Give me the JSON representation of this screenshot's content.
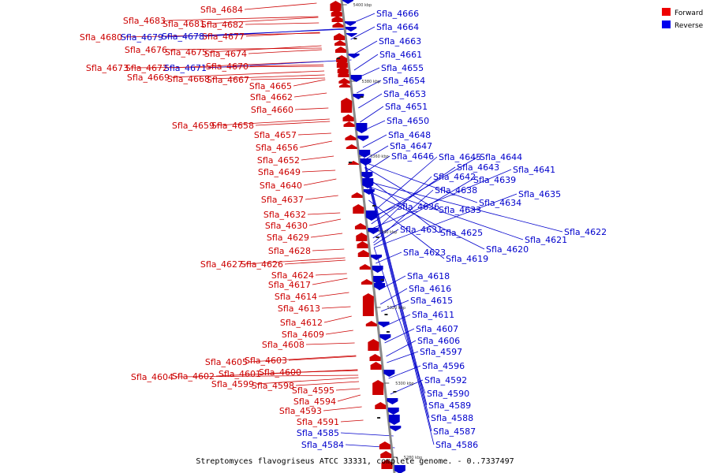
{
  "caption": "Streptomyces flavogriseus ATCC 33331, complete genome. - 0..7337497",
  "legend": {
    "forward": {
      "label": "Forward",
      "color": "#ee0000"
    },
    "reverse": {
      "label": "Reverse",
      "color": "#0000ee"
    }
  },
  "ticks": [
    "5400 kbp",
    "5380 kbp",
    "5360 kbp",
    "5340 kbp",
    "5320 kbp",
    "5300 kbp",
    "5280 kbp"
  ],
  "forward_labels": [
    "Sfla_4684",
    "Sfla_4683",
    "Sfla_4682",
    "Sfla_4681",
    "Sfla_4680",
    "Sfla_4679",
    "Sfla_4678",
    "Sfla_4677",
    "Sfla_4676",
    "Sfla_4675",
    "Sfla_4674",
    "Sfla_4673",
    "Sfla_4672",
    "Sfla_4671",
    "Sfla_4670",
    "Sfla_4669",
    "Sfla_4668",
    "Sfla_4667",
    "Sfla_4665",
    "Sfla_4662",
    "Sfla_4660",
    "Sfla_4659",
    "Sfla_4658",
    "Sfla_4657",
    "Sfla_4656",
    "Sfla_4652",
    "Sfla_4649",
    "Sfla_4640",
    "Sfla_4637",
    "Sfla_4632",
    "Sfla_4630",
    "Sfla_4629",
    "Sfla_4628",
    "Sfla_4627",
    "Sfla_4626",
    "Sfla_4624",
    "Sfla_4617",
    "Sfla_4614",
    "Sfla_4613",
    "Sfla_4612",
    "Sfla_4609",
    "Sfla_4608",
    "Sfla_4605",
    "Sfla_4603",
    "Sfla_4604",
    "Sfla_4602",
    "Sfla_4601",
    "Sfla_4600",
    "Sfla_4599",
    "Sfla_4598",
    "Sfla_4595",
    "Sfla_4594",
    "Sfla_4593",
    "Sfla_4591"
  ],
  "reverse_labels_left": [
    "Sfla_4679",
    "Sfla_4678",
    "Sfla_4671",
    "Sfla_4585",
    "Sfla_4584"
  ],
  "reverse_labels": [
    "Sfla_4666",
    "Sfla_4664",
    "Sfla_4663",
    "Sfla_4661",
    "Sfla_4655",
    "Sfla_4654",
    "Sfla_4653",
    "Sfla_4651",
    "Sfla_4650",
    "Sfla_4648",
    "Sfla_4647",
    "Sfla_4646",
    "Sfla_4645",
    "Sfla_4644",
    "Sfla_4643",
    "Sfla_4641",
    "Sfla_4642",
    "Sfla_4639",
    "Sfla_4638",
    "Sfla_4635",
    "Sfla_4636",
    "Sfla_4634",
    "Sfla_4633",
    "Sfla_4631",
    "Sfla_4625",
    "Sfla_4622",
    "Sfla_4621",
    "Sfla_4620",
    "Sfla_4623",
    "Sfla_4619",
    "Sfla_4618",
    "Sfla_4616",
    "Sfla_4615",
    "Sfla_4611",
    "Sfla_4607",
    "Sfla_4606",
    "Sfla_4597",
    "Sfla_4596",
    "Sfla_4592",
    "Sfla_4590",
    "Sfla_4589",
    "Sfla_4588",
    "Sfla_4587",
    "Sfla_4586"
  ]
}
